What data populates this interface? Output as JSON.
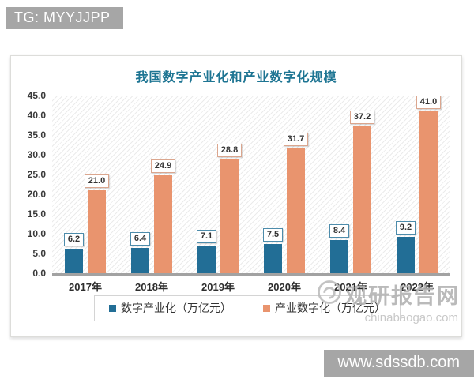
{
  "overlays": {
    "top_banner": "TG: MYYJJPP",
    "bottom_banner": "www.sdssdb.com"
  },
  "watermark": {
    "name": "观研报告网",
    "domain": "chinabaogao.com"
  },
  "chart_data": {
    "type": "bar",
    "title": "我国数字产业化和产业数字化规模",
    "categories": [
      "2017年",
      "2018年",
      "2019年",
      "2020年",
      "2021年",
      "2022年"
    ],
    "series": [
      {
        "name": "数字产业化（万亿元）",
        "color": "#226e96",
        "label_border": "#4d8cab",
        "values": [
          6.2,
          6.4,
          7.1,
          7.5,
          8.4,
          9.2
        ]
      },
      {
        "name": "产业数字化（万亿元）",
        "color": "#e9946e",
        "label_border": "#dba68e",
        "values": [
          21.0,
          24.9,
          28.8,
          31.7,
          37.2,
          41.0
        ]
      }
    ],
    "ylim": [
      0,
      45
    ],
    "ytick_step": 5,
    "ytick_labels": [
      "0.0",
      "5.0",
      "10.0",
      "15.0",
      "20.0",
      "25.0",
      "30.0",
      "35.0",
      "40.0",
      "45.0"
    ],
    "grid": false,
    "value_labels": true,
    "legend_position": "bottom"
  }
}
